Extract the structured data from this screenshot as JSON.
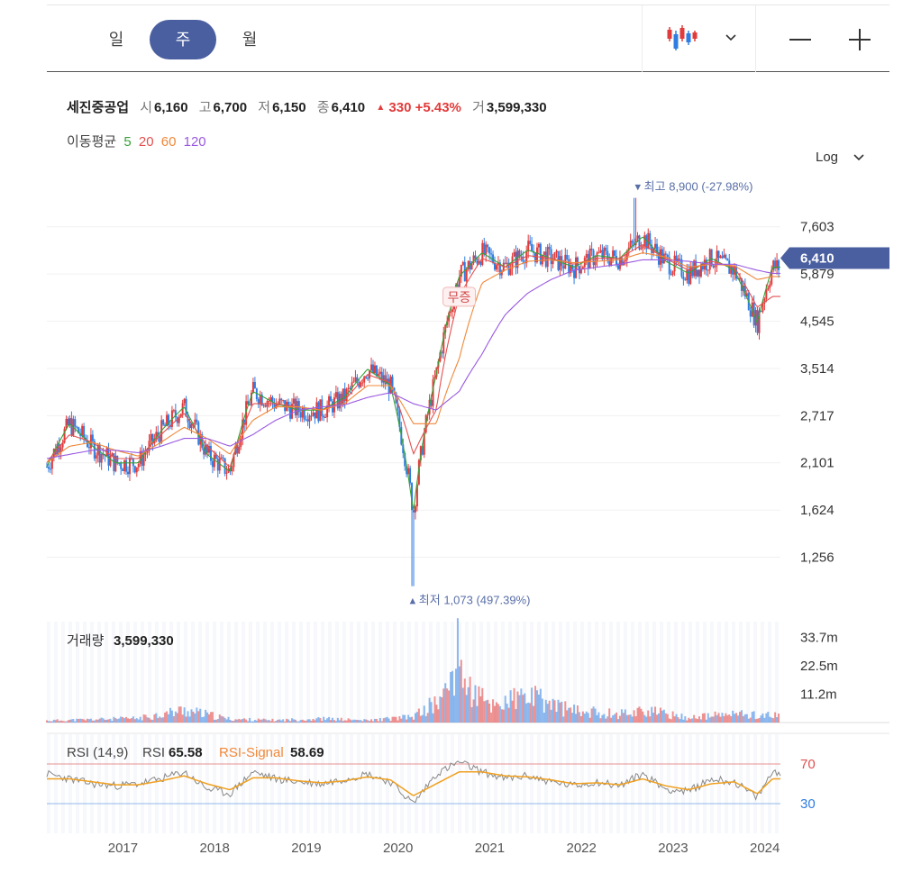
{
  "toolbar": {
    "tabs": [
      {
        "label": "일",
        "active": false
      },
      {
        "label": "주",
        "active": true
      },
      {
        "label": "월",
        "active": false
      }
    ],
    "chart_type_icon": "candlestick-icon",
    "dropdown_icon": "chevron-down-icon",
    "zoom_out_icon": "minus-icon",
    "zoom_in_icon": "plus-icon"
  },
  "info": {
    "name": "세진중공업",
    "open_label": "시",
    "open": "6,160",
    "high_label": "고",
    "high": "6,700",
    "low_label": "저",
    "low": "6,150",
    "close_label": "종",
    "close": "6,410",
    "change": "330",
    "change_pct": "+5.43%",
    "volume_label": "거",
    "volume": "3,599,330"
  },
  "ma_legend": {
    "label": "이동평균",
    "items": [
      {
        "label": "5",
        "color": "#3aa03a"
      },
      {
        "label": "20",
        "color": "#e45050"
      },
      {
        "label": "60",
        "color": "#f0883a"
      },
      {
        "label": "120",
        "color": "#9a5ae0"
      }
    ]
  },
  "log_label": "Log",
  "colors": {
    "up": "#e23b3b",
    "down": "#2f7de1",
    "accent": "#4a5fa0",
    "annotation": "#5a6fa8"
  },
  "chart_data": [
    {
      "type": "candlestick",
      "scale": "log",
      "ylim": [
        1000,
        9800
      ],
      "yticks": [
        "7,603",
        "5,879",
        "4,545",
        "3,514",
        "2,717",
        "2,101",
        "1,624",
        "1,256"
      ],
      "x_ticks": [
        "2017",
        "2018",
        "2019",
        "2020",
        "2021",
        "2022",
        "2023",
        "2024"
      ],
      "last_price": "6,410",
      "high_annotation": {
        "label": "최고",
        "value": "8,900",
        "pct": "(-27.98%)",
        "date": "2022-08"
      },
      "low_annotation": {
        "label": "최저",
        "value": "1,073",
        "pct": "(497.39%)",
        "date": "2020-03"
      },
      "event_marker": {
        "label": "무증",
        "date": "2020-09"
      },
      "x": [
        "2016-03",
        "2016-06",
        "2016-09",
        "2016-12",
        "2017-03",
        "2017-06",
        "2017-09",
        "2017-12",
        "2018-03",
        "2018-06",
        "2018-09",
        "2018-12",
        "2019-03",
        "2019-06",
        "2019-09",
        "2019-12",
        "2020-03",
        "2020-06",
        "2020-09",
        "2020-12",
        "2021-03",
        "2021-06",
        "2021-09",
        "2021-12",
        "2022-03",
        "2022-06",
        "2022-09",
        "2022-12",
        "2023-03",
        "2023-06",
        "2023-09",
        "2023-12",
        "2024-02"
      ],
      "series": [
        {
          "name": "5",
          "values": [
            2050,
            2600,
            2300,
            2100,
            2100,
            2500,
            2850,
            2200,
            2000,
            3100,
            2900,
            2800,
            2800,
            3000,
            3500,
            3200,
            1600,
            3400,
            5800,
            6600,
            6100,
            6700,
            6400,
            6100,
            6500,
            6400,
            7200,
            6300,
            5900,
            6400,
            6000,
            4500,
            6100
          ]
        },
        {
          "name": "20",
          "values": [
            2100,
            2450,
            2350,
            2150,
            2150,
            2450,
            2750,
            2300,
            2050,
            2900,
            2900,
            2850,
            2800,
            2950,
            3400,
            3250,
            2200,
            2800,
            5200,
            6400,
            6100,
            6500,
            6400,
            6200,
            6400,
            6400,
            6900,
            6400,
            6000,
            6300,
            6100,
            4900,
            5200
          ]
        },
        {
          "name": "60",
          "values": [
            2100,
            2300,
            2350,
            2250,
            2180,
            2350,
            2550,
            2400,
            2200,
            2650,
            2850,
            2850,
            2800,
            2900,
            3200,
            3200,
            2600,
            2600,
            3700,
            5600,
            6000,
            6300,
            6350,
            6250,
            6300,
            6350,
            6600,
            6450,
            6100,
            6200,
            6150,
            5700,
            5800
          ]
        },
        {
          "name": "120",
          "values": [
            2150,
            2200,
            2250,
            2250,
            2220,
            2300,
            2400,
            2400,
            2300,
            2450,
            2650,
            2800,
            2850,
            2880,
            3000,
            3080,
            2900,
            2800,
            3100,
            3800,
            4700,
            5300,
            5700,
            6000,
            6100,
            6200,
            6350,
            6350,
            6300,
            6200,
            6200,
            6000,
            5900
          ]
        }
      ]
    },
    {
      "type": "bar",
      "title": "거래량",
      "value": "3,599,330",
      "yticks": [
        "33.7m",
        "22.5m",
        "11.2m"
      ],
      "ylim": [
        0,
        40
      ],
      "x": [
        "2016-03",
        "2016-09",
        "2017-03",
        "2017-09",
        "2018-03",
        "2018-09",
        "2019-03",
        "2019-09",
        "2020-03",
        "2020-07",
        "2020-09",
        "2020-10",
        "2021-01",
        "2021-06",
        "2021-12",
        "2022-06",
        "2022-09",
        "2023-03",
        "2023-09",
        "2024-02"
      ],
      "values": [
        1.0,
        1.6,
        2.2,
        6.5,
        1.8,
        1.2,
        2.0,
        1.1,
        3.0,
        13.0,
        37.0,
        18.0,
        9.0,
        13.5,
        6.0,
        4.5,
        6.5,
        2.5,
        4.5,
        3.6
      ]
    },
    {
      "type": "line",
      "title": "RSI (14,9)",
      "rsi_label": "RSI",
      "rsi_value": "65.58",
      "signal_label": "RSI-Signal",
      "signal_value": "58.69",
      "levels": [
        "70",
        "30"
      ],
      "ylim": [
        0,
        100
      ],
      "x": [
        "2016-03",
        "2016-06",
        "2016-09",
        "2016-12",
        "2017-03",
        "2017-06",
        "2017-09",
        "2017-12",
        "2018-03",
        "2018-06",
        "2018-09",
        "2018-12",
        "2019-03",
        "2019-06",
        "2019-09",
        "2019-12",
        "2020-03",
        "2020-06",
        "2020-09",
        "2020-12",
        "2021-03",
        "2021-06",
        "2021-09",
        "2021-12",
        "2022-03",
        "2022-06",
        "2022-09",
        "2022-12",
        "2023-03",
        "2023-06",
        "2023-09",
        "2023-12",
        "2024-02"
      ],
      "series": [
        {
          "name": "RSI",
          "values": [
            60,
            55,
            50,
            48,
            50,
            55,
            62,
            45,
            40,
            62,
            55,
            52,
            50,
            55,
            60,
            52,
            30,
            60,
            72,
            62,
            55,
            58,
            52,
            48,
            52,
            48,
            60,
            45,
            42,
            55,
            52,
            36,
            62
          ]
        },
        {
          "name": "RSI-Signal",
          "values": [
            55,
            55,
            52,
            49,
            49,
            53,
            58,
            50,
            44,
            56,
            56,
            53,
            51,
            53,
            57,
            54,
            38,
            50,
            62,
            62,
            58,
            57,
            54,
            50,
            51,
            49,
            55,
            48,
            44,
            50,
            52,
            40,
            55
          ]
        }
      ]
    }
  ]
}
